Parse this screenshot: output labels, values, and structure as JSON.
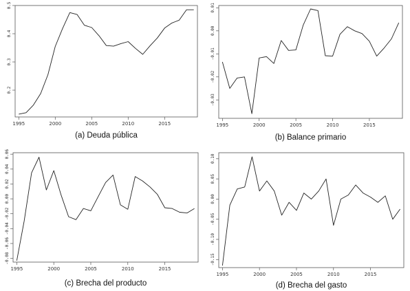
{
  "chart_data": [
    {
      "type": "line",
      "title": "(a) Deuda pública",
      "x": [
        1995,
        1996,
        1997,
        1998,
        1999,
        2000,
        2001,
        2002,
        2003,
        2004,
        2005,
        2006,
        2007,
        2008,
        2009,
        2010,
        2011,
        2012,
        2013,
        2014,
        2015,
        2016,
        2017,
        2018,
        2019
      ],
      "series": [
        {
          "values": [
            0.115,
            0.12,
            0.147,
            0.188,
            0.255,
            0.355,
            0.418,
            0.475,
            0.468,
            0.43,
            0.422,
            0.393,
            0.358,
            0.356,
            0.365,
            0.372,
            0.348,
            0.327,
            0.357,
            0.385,
            0.42,
            0.438,
            0.448,
            0.485,
            0.485
          ]
        }
      ],
      "xlim": [
        1994.5,
        2019.5
      ],
      "ylim": [
        0.105,
        0.5
      ],
      "xticks": [
        1995,
        2000,
        2005,
        2010,
        2015
      ],
      "yticks": [
        0.2,
        0.3,
        0.4,
        0.5
      ],
      "ytick_labels": [
        "0.2",
        "0.3",
        "0.4",
        "0.5"
      ]
    },
    {
      "type": "line",
      "title": "(b) Balance primario",
      "x": [
        1995,
        1996,
        1997,
        1998,
        1999,
        2000,
        2001,
        2002,
        2003,
        2004,
        2005,
        2006,
        2007,
        2008,
        2009,
        2010,
        2011,
        2012,
        2013,
        2014,
        2015,
        2016,
        2017,
        2018,
        2019
      ],
      "series": [
        {
          "values": [
            -0.0135,
            -0.025,
            -0.0205,
            -0.02,
            -0.036,
            -0.0118,
            -0.0112,
            -0.0142,
            -0.0042,
            -0.0085,
            -0.0083,
            0.0025,
            0.0095,
            0.0088,
            -0.0108,
            -0.011,
            -0.0015,
            0.0018,
            0.0,
            -0.0012,
            -0.0045,
            -0.011,
            -0.0075,
            -0.0035,
            0.0035
          ]
        }
      ],
      "xlim": [
        1994.5,
        2019.5
      ],
      "ylim": [
        -0.038,
        0.011
      ],
      "xticks": [
        1995,
        2000,
        2005,
        2010,
        2015
      ],
      "yticks": [
        -0.03,
        -0.02,
        -0.01,
        0.0,
        0.01
      ],
      "ytick_labels": [
        "-0.03",
        "-0.02",
        "-0.01",
        "0.00",
        "0.01"
      ]
    },
    {
      "type": "line",
      "title": "(c) Brecha del producto",
      "x": [
        1995,
        1996,
        1997,
        1998,
        1999,
        2000,
        2001,
        2002,
        2003,
        2004,
        2005,
        2006,
        2007,
        2008,
        2009,
        2010,
        2011,
        2012,
        2013,
        2014,
        2015,
        2016,
        2017,
        2018,
        2019
      ],
      "series": [
        {
          "values": [
            -0.083,
            -0.03,
            0.035,
            0.056,
            0.012,
            0.038,
            0.005,
            -0.024,
            -0.028,
            -0.013,
            -0.016,
            0.003,
            0.022,
            0.032,
            -0.008,
            -0.014,
            0.03,
            0.024,
            0.016,
            0.006,
            -0.012,
            -0.013,
            -0.018,
            -0.019,
            -0.013
          ]
        }
      ],
      "xlim": [
        1994.5,
        2019.5
      ],
      "ylim": [
        -0.085,
        0.062
      ],
      "xticks": [
        1995,
        2000,
        2005,
        2010,
        2015
      ],
      "yticks": [
        -0.08,
        -0.06,
        -0.04,
        -0.02,
        0.0,
        0.02,
        0.04,
        0.06
      ],
      "ytick_labels": [
        "-0.08",
        "-0.06",
        "-0.04",
        "-0.02",
        "0.00",
        "0.02",
        "0.04",
        "0.06"
      ]
    },
    {
      "type": "line",
      "title": "(d) Brecha del gasto",
      "x": [
        1995,
        1996,
        1997,
        1998,
        1999,
        2000,
        2001,
        2002,
        2003,
        2004,
        2005,
        2006,
        2007,
        2008,
        2009,
        2010,
        2011,
        2012,
        2013,
        2014,
        2015,
        2016,
        2017,
        2018,
        2019
      ],
      "series": [
        {
          "values": [
            -0.165,
            -0.015,
            0.025,
            0.03,
            0.105,
            0.02,
            0.045,
            0.02,
            -0.04,
            -0.008,
            -0.028,
            0.015,
            0.0,
            0.02,
            0.05,
            -0.065,
            0.0,
            0.01,
            0.035,
            0.015,
            0.005,
            -0.008,
            0.008,
            -0.05,
            -0.025
          ]
        }
      ],
      "xlim": [
        1994.5,
        2019.5
      ],
      "ylim": [
        -0.17,
        0.115
      ],
      "xticks": [
        1995,
        2000,
        2005,
        2010,
        2015
      ],
      "yticks": [
        -0.15,
        -0.1,
        -0.05,
        0.0,
        0.05,
        0.1
      ],
      "ytick_labels": [
        "-0.15",
        "-0.10",
        "-0.05",
        "0.00",
        "0.05",
        "0.10"
      ]
    }
  ]
}
